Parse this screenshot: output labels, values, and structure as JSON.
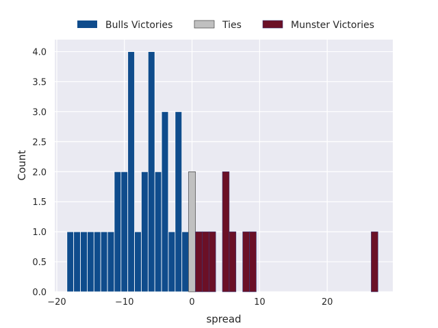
{
  "chart_data": {
    "type": "bar",
    "title": "",
    "xlabel": "spread",
    "ylabel": "Count",
    "xlim": [
      -20.3,
      29.7
    ],
    "ylim": [
      0,
      4.2
    ],
    "grid": true,
    "legend_placement": "top-center, outside plot",
    "x_ticks": [
      -20,
      -10,
      0,
      10,
      20
    ],
    "x_tick_labels": [
      "−20",
      "−10",
      "0",
      "10",
      "20"
    ],
    "y_ticks": [
      0,
      0.5,
      1,
      1.5,
      2,
      2.5,
      3,
      3.5,
      4
    ],
    "y_tick_labels": [
      "0.0",
      "0.5",
      "1.0",
      "1.5",
      "2.0",
      "2.5",
      "3.0",
      "3.5",
      "4.0"
    ],
    "bin_width": 1,
    "series": [
      {
        "name": "Bulls Victories",
        "color": "#0f4c8c",
        "bins": [
          {
            "x": -18,
            "count": 1
          },
          {
            "x": -17,
            "count": 1
          },
          {
            "x": -16,
            "count": 1
          },
          {
            "x": -15,
            "count": 1
          },
          {
            "x": -14,
            "count": 1
          },
          {
            "x": -13,
            "count": 1
          },
          {
            "x": -12,
            "count": 1
          },
          {
            "x": -11,
            "count": 2
          },
          {
            "x": -10,
            "count": 2
          },
          {
            "x": -9,
            "count": 4
          },
          {
            "x": -8,
            "count": 1
          },
          {
            "x": -7,
            "count": 2
          },
          {
            "x": -6,
            "count": 4
          },
          {
            "x": -5,
            "count": 2
          },
          {
            "x": -4,
            "count": 3
          },
          {
            "x": -3,
            "count": 1
          },
          {
            "x": -2,
            "count": 3
          },
          {
            "x": -1,
            "count": 1
          }
        ]
      },
      {
        "name": "Ties",
        "color": "#c0c0c0",
        "bins": [
          {
            "x": 0,
            "count": 2
          }
        ]
      },
      {
        "name": "Munster Victories",
        "color": "#6b1026",
        "bins": [
          {
            "x": 1,
            "count": 1
          },
          {
            "x": 2,
            "count": 1
          },
          {
            "x": 3,
            "count": 1
          },
          {
            "x": 5,
            "count": 2
          },
          {
            "x": 6,
            "count": 1
          },
          {
            "x": 8,
            "count": 1
          },
          {
            "x": 9,
            "count": 1
          },
          {
            "x": 27,
            "count": 1
          }
        ]
      }
    ]
  },
  "style": {
    "plot_background": "#eaeaf2",
    "grid_color": "#ffffff",
    "text_color": "#262626",
    "tie_edge_color": "#262626",
    "munster_edge_color": "#3b3b7a",
    "bulls_edge_color": "#ffffff"
  }
}
